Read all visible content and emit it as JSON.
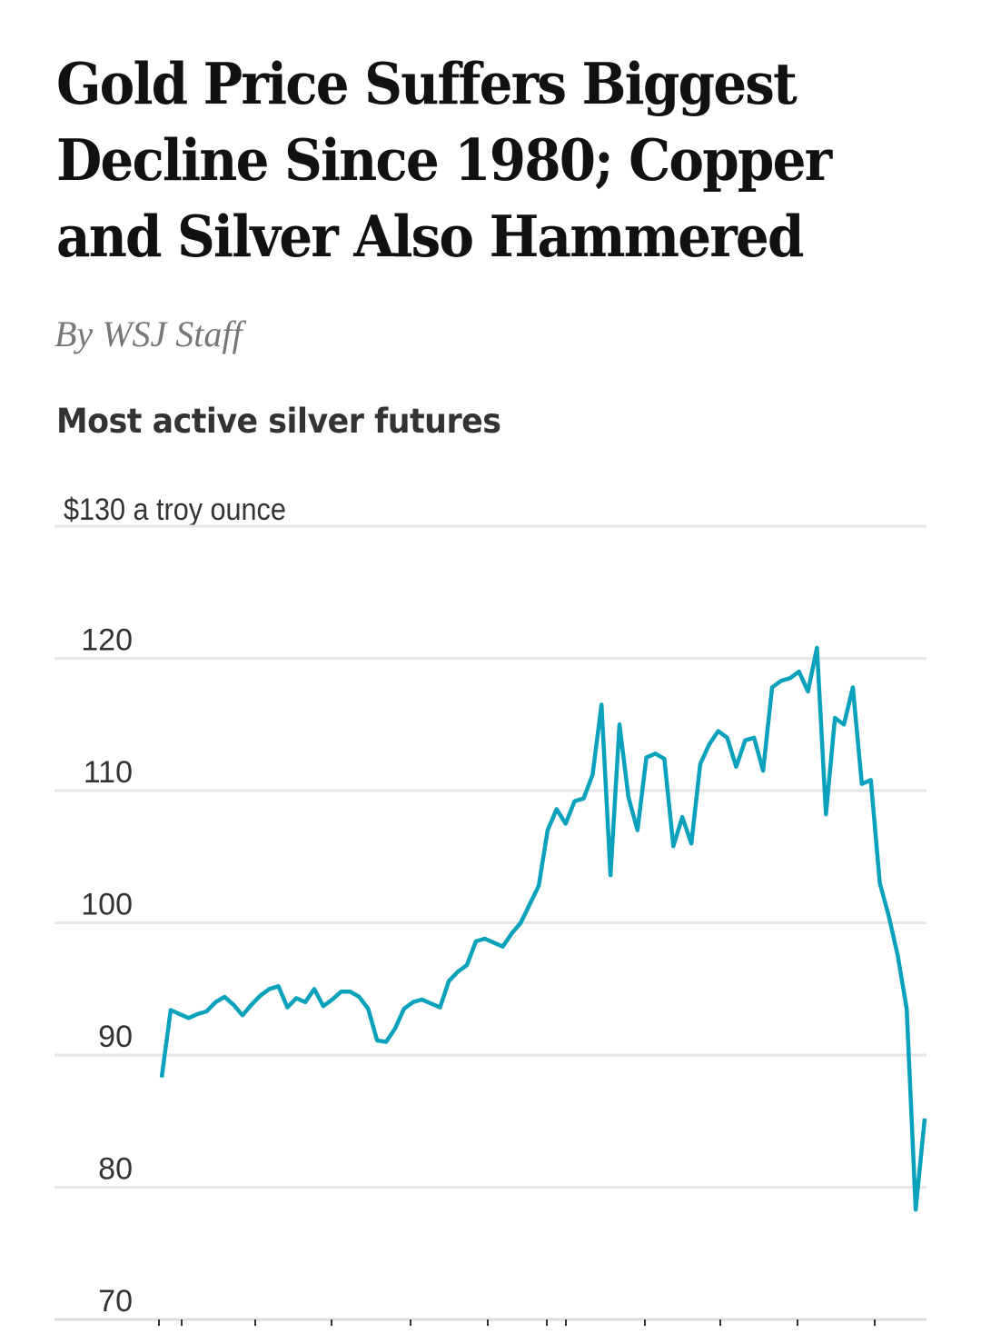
{
  "article": {
    "headline": "Gold Price Suffers Biggest Decline Since 1980; Copper and Silver Also Hammered",
    "byline": "By WSJ Staff"
  },
  "chart_data": {
    "type": "line",
    "title": "Most active silver futures",
    "unit_label": "$130 a troy ounce",
    "ylim": [
      70,
      130
    ],
    "y_ticks": [
      "70",
      "80",
      "90",
      "100",
      "110",
      "120"
    ],
    "grid": true,
    "line_color": "#0aa1bd",
    "series": [
      {
        "values": [
          88.3,
          93.4,
          93.1,
          92.8,
          93.1,
          93.3,
          94.0,
          94.4,
          93.8,
          93.0,
          93.8,
          94.5,
          95.0,
          95.2,
          93.6,
          94.3,
          94.0,
          95.0,
          93.7,
          94.2,
          94.8,
          94.8,
          94.4,
          93.5,
          91.1,
          91.0,
          92.0,
          93.5,
          94.0,
          94.2,
          93.9,
          93.6,
          95.6,
          96.3,
          96.8,
          98.6,
          98.8,
          98.5,
          98.2,
          99.2,
          100.0,
          101.4,
          102.8,
          107.0,
          108.6,
          107.5,
          109.2,
          109.4,
          111.2,
          116.5,
          103.6,
          115.0,
          109.5,
          107.0,
          112.5,
          112.8,
          112.4,
          105.8,
          108.0,
          106.0,
          112.0,
          113.5,
          114.5,
          114.0,
          111.8,
          113.8,
          114.0,
          111.5,
          117.8,
          118.3,
          118.5,
          119.0,
          117.5,
          120.8,
          108.2,
          115.5,
          115.0,
          117.8,
          110.5,
          110.8,
          103.0,
          100.5,
          97.5,
          93.5,
          78.3,
          85.2
        ]
      }
    ]
  }
}
